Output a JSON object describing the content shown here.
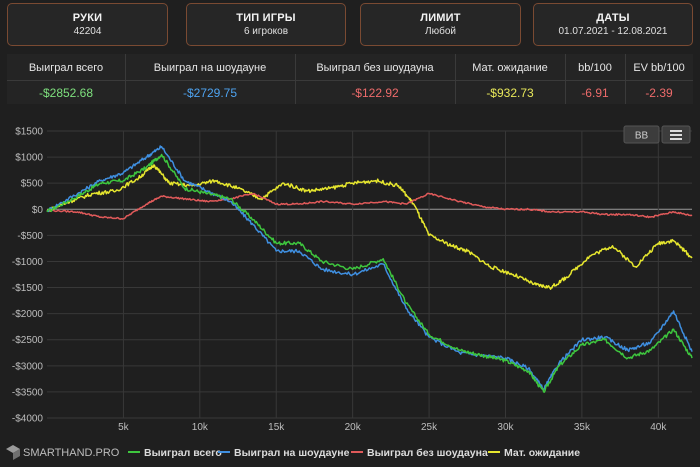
{
  "filters": [
    {
      "label": "РУКИ",
      "value": "42204"
    },
    {
      "label": "ТИП ИГРЫ",
      "value": "6 игроков"
    },
    {
      "label": "ЛИМИТ",
      "value": "Любой"
    },
    {
      "label": "ДАТЫ",
      "value": "01.07.2021 - 12.08.2021"
    }
  ],
  "stats": {
    "headers": [
      "Выиграл всего",
      "Выиграл на шоудауне",
      "Выиграл без шоудауна",
      "Мат. ожидание",
      "bb/100",
      "EV bb/100"
    ],
    "values": [
      "-$2852.68",
      "-$2729.75",
      "-$122.92",
      "-$932.73",
      "-6.91",
      "-2.39"
    ],
    "value_colors": [
      "#7ee07e",
      "#4ea3f0",
      "#ee6b6b",
      "#e8e85a",
      "#ee6b6b",
      "#ee6b6b"
    ]
  },
  "toolbar": {
    "bb_label": "BB",
    "menu_icon": "hamburger-menu-icon"
  },
  "branding": {
    "logo_icon": "smarthand-logo-icon",
    "name": "SMARTHAND.PRO"
  },
  "chart_data": {
    "type": "line",
    "xlim": [
      0,
      42204
    ],
    "ylim": [
      -4000,
      1500
    ],
    "grid": true,
    "legend_position": "bottom",
    "x_ticks": [
      {
        "value": 5000,
        "label": "5k"
      },
      {
        "value": 10000,
        "label": "10k"
      },
      {
        "value": 15000,
        "label": "15k"
      },
      {
        "value": 20000,
        "label": "20k"
      },
      {
        "value": 25000,
        "label": "25k"
      },
      {
        "value": 30000,
        "label": "30k"
      },
      {
        "value": 35000,
        "label": "35k"
      },
      {
        "value": 40000,
        "label": "40k"
      }
    ],
    "y_ticks": [
      {
        "value": 1500,
        "label": "$1500"
      },
      {
        "value": 1000,
        "label": "$1000"
      },
      {
        "value": 500,
        "label": "$500"
      },
      {
        "value": 0,
        "label": "$0"
      },
      {
        "value": -500,
        "label": "-$500"
      },
      {
        "value": -1000,
        "label": "-$1000"
      },
      {
        "value": -1500,
        "label": "-$1500"
      },
      {
        "value": -2000,
        "label": "-$2000"
      },
      {
        "value": -2500,
        "label": "-$2500"
      },
      {
        "value": -3000,
        "label": "-$3000"
      },
      {
        "value": -3500,
        "label": "-$3500"
      },
      {
        "value": -4000,
        "label": "-$4000"
      }
    ],
    "series": [
      {
        "name": "Выиграл всего",
        "color": "#3ec63e",
        "x": [
          0,
          2000,
          3500,
          5000,
          6500,
          7500,
          9000,
          10500,
          12000,
          13500,
          15000,
          16500,
          18000,
          20000,
          22000,
          23500,
          25000,
          27000,
          28500,
          30000,
          31500,
          32500,
          33500,
          35000,
          36500,
          38000,
          39500,
          41000,
          42204
        ],
        "y": [
          -50,
          250,
          500,
          550,
          800,
          1050,
          400,
          300,
          200,
          -200,
          -650,
          -650,
          -1000,
          -1150,
          -950,
          -1800,
          -2400,
          -2700,
          -2800,
          -2900,
          -3100,
          -3500,
          -3000,
          -2600,
          -2500,
          -2850,
          -2700,
          -2300,
          -2853
        ]
      },
      {
        "name": "Выиграл на шоудауне",
        "color": "#3f8fe0",
        "x": [
          0,
          2000,
          3500,
          5000,
          6500,
          7500,
          9000,
          10500,
          12000,
          13500,
          15000,
          16500,
          18000,
          20000,
          22000,
          23500,
          25000,
          27000,
          28500,
          30000,
          31500,
          32500,
          33500,
          35000,
          36500,
          38000,
          39500,
          41000,
          42204
        ],
        "y": [
          -30,
          300,
          550,
          700,
          1000,
          1200,
          550,
          350,
          150,
          -300,
          -800,
          -800,
          -1150,
          -1250,
          -1050,
          -1900,
          -2450,
          -2750,
          -2800,
          -2850,
          -3050,
          -3450,
          -2950,
          -2500,
          -2450,
          -2700,
          -2550,
          -1950,
          -2730
        ]
      },
      {
        "name": "Выиграл без шоудауна",
        "color": "#e05a5a",
        "x": [
          0,
          2000,
          3500,
          5000,
          6500,
          7500,
          9000,
          10500,
          12000,
          13500,
          15000,
          16500,
          18000,
          20000,
          22000,
          23500,
          25000,
          27000,
          28500,
          30000,
          31500,
          33000,
          35000,
          36500,
          38000,
          39500,
          41000,
          42204
        ],
        "y": [
          -20,
          -50,
          -150,
          -180,
          100,
          250,
          200,
          150,
          200,
          300,
          100,
          100,
          150,
          100,
          150,
          100,
          300,
          150,
          50,
          0,
          0,
          -50,
          -50,
          -100,
          -100,
          -150,
          -50,
          -123
        ]
      },
      {
        "name": "Мат. ожидание",
        "color": "#e6e62e",
        "x": [
          0,
          1500,
          3000,
          4500,
          6000,
          7000,
          8000,
          9500,
          11000,
          12500,
          14000,
          15500,
          17000,
          18500,
          20000,
          21500,
          23000,
          24000,
          25000,
          26500,
          27500,
          29000,
          30500,
          32000,
          33000,
          34000,
          35500,
          37000,
          38500,
          40000,
          41000,
          42204
        ],
        "y": [
          -30,
          150,
          300,
          350,
          600,
          850,
          500,
          450,
          550,
          400,
          200,
          500,
          350,
          400,
          500,
          550,
          450,
          100,
          -500,
          -700,
          -800,
          -1100,
          -1250,
          -1450,
          -1500,
          -1300,
          -900,
          -700,
          -1100,
          -650,
          -600,
          -933
        ]
      }
    ]
  }
}
